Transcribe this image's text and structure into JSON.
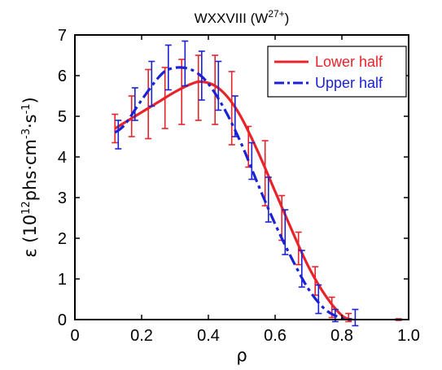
{
  "chart_data": {
    "type": "line",
    "title": "WXXVIII (W",
    "title_superscript": "27+",
    "title_suffix": ")",
    "xlabel": "ρ",
    "ylabel_prefix": "ε (10",
    "ylabel_exp1": "12",
    "ylabel_mid": "phs·cm",
    "ylabel_exp2": "-3",
    "ylabel_mid2": "·s",
    "ylabel_exp3": "-1",
    "ylabel_suffix": ")",
    "xlim": [
      0,
      1.0
    ],
    "ylim": [
      0,
      7
    ],
    "xticks": [
      "0",
      "0.2",
      "0.4",
      "0.6",
      "0.8",
      "1.0"
    ],
    "xtick_values": [
      0,
      0.2,
      0.4,
      0.6,
      0.8,
      1.0
    ],
    "yticks": [
      "0",
      "1",
      "2",
      "3",
      "4",
      "5",
      "6",
      "7"
    ],
    "ytick_values": [
      0,
      1,
      2,
      3,
      4,
      5,
      6,
      7
    ],
    "legend_position": "top-right",
    "series": [
      {
        "name": "Lower half",
        "color": "#e8232a",
        "style": "solid",
        "fit_x": [
          0.12,
          0.15,
          0.2,
          0.25,
          0.3,
          0.35,
          0.38,
          0.42,
          0.46,
          0.5,
          0.55,
          0.6,
          0.65,
          0.7,
          0.75,
          0.8,
          0.83
        ],
        "fit_y": [
          4.7,
          4.85,
          5.1,
          5.35,
          5.6,
          5.8,
          5.85,
          5.75,
          5.45,
          4.95,
          4.1,
          3.15,
          2.2,
          1.3,
          0.6,
          0.1,
          0.0
        ],
        "points": [
          {
            "x": 0.12,
            "y": 4.7,
            "err": 0.35
          },
          {
            "x": 0.17,
            "y": 5.0,
            "err": 0.5
          },
          {
            "x": 0.22,
            "y": 5.3,
            "err": 0.85
          },
          {
            "x": 0.27,
            "y": 5.45,
            "err": 0.75
          },
          {
            "x": 0.32,
            "y": 5.6,
            "err": 0.8
          },
          {
            "x": 0.37,
            "y": 5.7,
            "err": 0.8
          },
          {
            "x": 0.42,
            "y": 5.65,
            "err": 0.85
          },
          {
            "x": 0.47,
            "y": 5.2,
            "err": 0.9
          },
          {
            "x": 0.52,
            "y": 4.25,
            "err": 0.5
          },
          {
            "x": 0.57,
            "y": 3.6,
            "err": 0.8
          },
          {
            "x": 0.62,
            "y": 2.5,
            "err": 0.55
          },
          {
            "x": 0.67,
            "y": 1.75,
            "err": 0.4
          },
          {
            "x": 0.72,
            "y": 0.95,
            "err": 0.35
          },
          {
            "x": 0.77,
            "y": 0.3,
            "err": 0.25
          },
          {
            "x": 0.82,
            "y": 0.05,
            "err": 0.1
          },
          {
            "x": 0.97,
            "y": 0.0,
            "err": 0.02
          }
        ]
      },
      {
        "name": "Upper half",
        "color": "#1b22d6",
        "style": "dashdot",
        "fit_x": [
          0.12,
          0.15,
          0.2,
          0.25,
          0.28,
          0.32,
          0.36,
          0.4,
          0.45,
          0.5,
          0.55,
          0.6,
          0.65,
          0.7,
          0.75,
          0.8,
          0.83
        ],
        "fit_y": [
          4.6,
          4.8,
          5.4,
          5.95,
          6.15,
          6.2,
          6.1,
          5.8,
          5.15,
          4.3,
          3.3,
          2.35,
          1.5,
          0.75,
          0.25,
          0.03,
          0.0
        ],
        "points": [
          {
            "x": 0.13,
            "y": 4.55,
            "err": 0.35
          },
          {
            "x": 0.18,
            "y": 5.3,
            "err": 0.4
          },
          {
            "x": 0.23,
            "y": 5.8,
            "err": 0.55
          },
          {
            "x": 0.28,
            "y": 6.2,
            "err": 0.55
          },
          {
            "x": 0.33,
            "y": 6.3,
            "err": 0.55
          },
          {
            "x": 0.38,
            "y": 6.0,
            "err": 0.6
          },
          {
            "x": 0.43,
            "y": 5.75,
            "err": 0.6
          },
          {
            "x": 0.48,
            "y": 5.0,
            "err": 0.5
          },
          {
            "x": 0.53,
            "y": 3.9,
            "err": 0.45
          },
          {
            "x": 0.58,
            "y": 2.95,
            "err": 0.55
          },
          {
            "x": 0.63,
            "y": 2.15,
            "err": 0.55
          },
          {
            "x": 0.68,
            "y": 1.25,
            "err": 0.45
          },
          {
            "x": 0.73,
            "y": 0.5,
            "err": 0.35
          },
          {
            "x": 0.78,
            "y": 0.1,
            "err": 0.15
          },
          {
            "x": 0.84,
            "y": 0.05,
            "err": 0.2
          }
        ]
      }
    ]
  }
}
